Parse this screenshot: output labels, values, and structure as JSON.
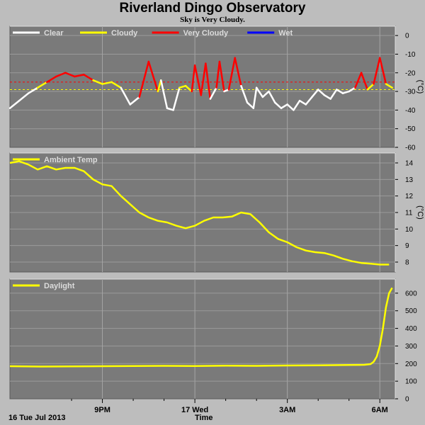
{
  "title": "Riverland Dingo Observatory",
  "subtitle": "Sky is Very Cloudy.",
  "date_label": "16 Tue Jul 2013",
  "xlabel": "Time",
  "colors": {
    "clear": "#ffffff",
    "cloudy": "#ffff00",
    "very_cloudy": "#ff0000",
    "wet": "#0000ff",
    "panel": "#7a7a7a",
    "frame": "#bdbdbd"
  },
  "chart_data": [
    {
      "type": "line",
      "name": "sky",
      "legend": [
        {
          "label": "Clear",
          "color": "#ffffff"
        },
        {
          "label": "Cloudy",
          "color": "#ffff00"
        },
        {
          "label": "Very Cloudy",
          "color": "#ff0000"
        },
        {
          "label": "Wet",
          "color": "#0000ff"
        }
      ],
      "ylabel": "(°C)",
      "yticks": [
        0,
        -10,
        -20,
        -30,
        -40,
        -50,
        -60
      ],
      "ylim": [
        -60,
        5
      ],
      "xlim": [
        18.0,
        30.5
      ],
      "thresholds": [
        -25,
        -29
      ],
      "x": [
        18.0,
        18.3,
        18.6,
        18.9,
        19.2,
        19.5,
        19.8,
        20.1,
        20.4,
        20.7,
        21.0,
        21.3,
        21.6,
        21.9,
        22.2,
        22.5,
        22.8,
        22.9,
        23.1,
        23.3,
        23.5,
        23.7,
        23.9,
        24.0,
        24.2,
        24.35,
        24.5,
        24.7,
        24.8,
        24.95,
        25.1,
        25.3,
        25.5,
        25.7,
        25.9,
        26.0,
        26.2,
        26.4,
        26.6,
        26.8,
        27.0,
        27.2,
        27.4,
        27.6,
        27.8,
        28.0,
        28.2,
        28.4,
        28.6,
        28.8,
        29.0,
        29.2,
        29.4,
        29.6,
        29.8,
        30.0,
        30.2,
        30.4
      ],
      "y": [
        -39,
        -35,
        -31,
        -28,
        -25,
        -22,
        -20,
        -22,
        -21,
        -24,
        -26,
        -25,
        -28,
        -37,
        -33,
        -14,
        -30,
        -24,
        -39,
        -40,
        -28,
        -27,
        -30,
        -16,
        -32,
        -15,
        -34,
        -28,
        -14,
        -30,
        -29,
        -12,
        -27,
        -36,
        -39,
        -28,
        -33,
        -30,
        -36,
        -39,
        -37,
        -40,
        -35,
        -37,
        -33,
        -29,
        -32,
        -34,
        -29,
        -31,
        -30,
        -28,
        -20,
        -29,
        -26,
        -12,
        -26,
        -28
      ]
    },
    {
      "type": "line",
      "name": "Ambient Temp",
      "legend": [
        {
          "label": "Ambient Temp",
          "color": "#ffff00"
        }
      ],
      "ylabel": "(°C)",
      "yticks": [
        14,
        13,
        12,
        11,
        10,
        9,
        8
      ],
      "ylim": [
        7.4,
        14.6
      ],
      "xlim": [
        18.0,
        30.5
      ],
      "x": [
        18.0,
        18.3,
        18.6,
        18.9,
        19.2,
        19.5,
        19.8,
        20.1,
        20.4,
        20.7,
        21.0,
        21.3,
        21.6,
        21.9,
        22.2,
        22.5,
        22.8,
        23.1,
        23.4,
        23.7,
        24.0,
        24.3,
        24.6,
        24.9,
        25.2,
        25.5,
        25.8,
        26.1,
        26.4,
        26.7,
        27.0,
        27.3,
        27.6,
        27.9,
        28.2,
        28.5,
        28.8,
        29.1,
        29.4,
        29.7,
        30.0,
        30.3
      ],
      "y": [
        14.0,
        14.1,
        13.9,
        13.6,
        13.8,
        13.6,
        13.7,
        13.7,
        13.5,
        13.0,
        12.7,
        12.6,
        12.0,
        11.5,
        11.0,
        10.7,
        10.5,
        10.4,
        10.2,
        10.05,
        10.2,
        10.5,
        10.7,
        10.7,
        10.75,
        11.0,
        10.9,
        10.4,
        9.8,
        9.4,
        9.2,
        8.9,
        8.7,
        8.6,
        8.55,
        8.4,
        8.2,
        8.05,
        7.95,
        7.9,
        7.85,
        7.85
      ]
    },
    {
      "type": "line",
      "name": "Daylight",
      "legend": [
        {
          "label": "Daylight",
          "color": "#ffff00"
        }
      ],
      "ylabel": "",
      "yticks": [
        600,
        500,
        400,
        300,
        200,
        100,
        0
      ],
      "ylim": [
        0,
        680
      ],
      "xlim": [
        18.0,
        30.5
      ],
      "x": [
        18.0,
        19.0,
        20.0,
        21.0,
        22.0,
        23.0,
        24.0,
        25.0,
        26.0,
        27.0,
        28.0,
        29.0,
        29.5,
        29.7,
        29.8,
        29.9,
        30.0,
        30.1,
        30.2,
        30.3,
        30.4
      ],
      "y": [
        185,
        183,
        184,
        185,
        186,
        187,
        186,
        188,
        187,
        189,
        190,
        192,
        193,
        197,
        210,
        240,
        300,
        400,
        520,
        600,
        630
      ]
    }
  ],
  "xticks": [
    {
      "x": 21,
      "label": "9PM"
    },
    {
      "x": 24,
      "label": "17 Wed"
    },
    {
      "x": 27,
      "label": "3AM"
    },
    {
      "x": 30,
      "label": "6AM"
    }
  ],
  "xminorticks": [
    20,
    22,
    23,
    25,
    26,
    28,
    29
  ]
}
